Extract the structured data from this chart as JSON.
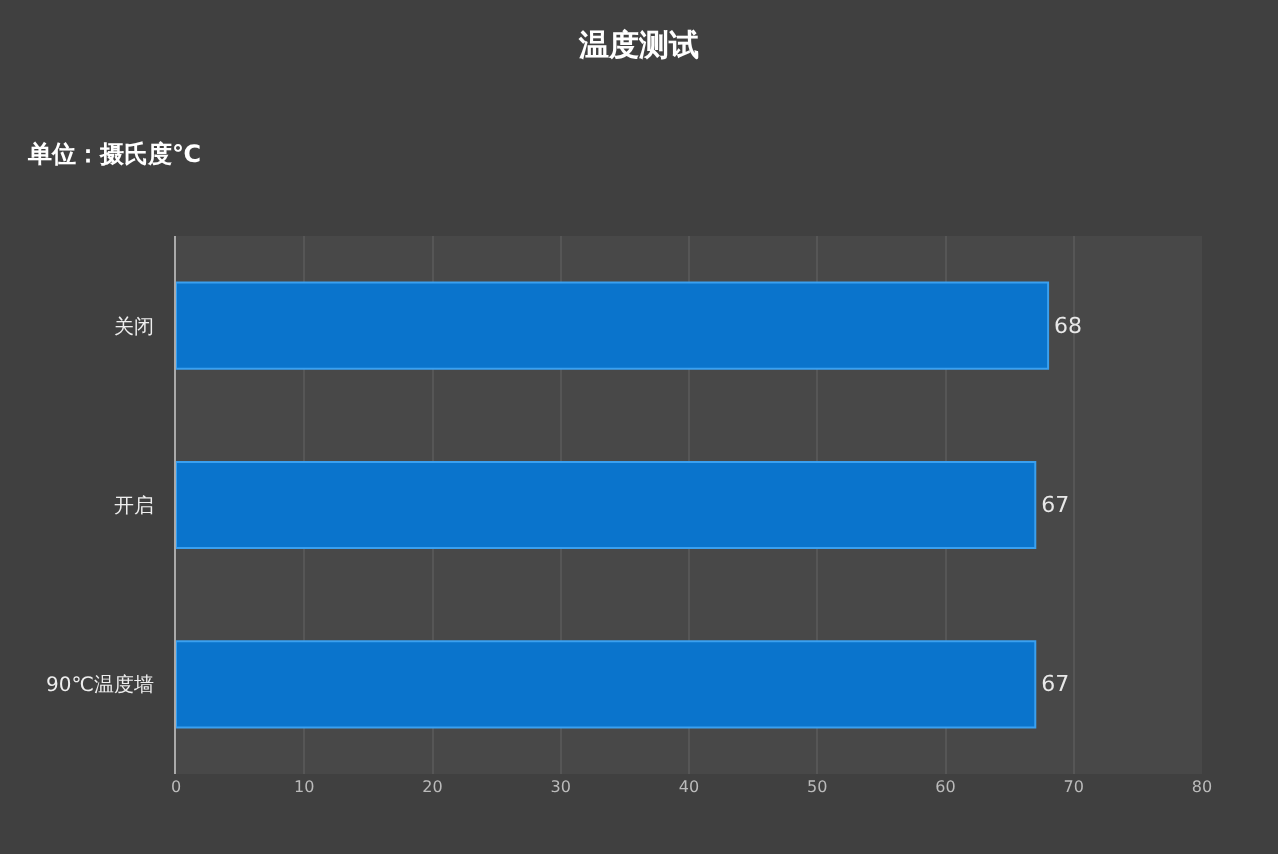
{
  "chart_data": {
    "type": "bar",
    "orientation": "horizontal",
    "title": "温度测试",
    "subtitle": "单位：摄氏度℃",
    "categories": [
      "关闭",
      "开启",
      "90℃温度墙"
    ],
    "series": [
      {
        "color": "#0a74cc",
        "values": [
          68,
          67,
          67
        ]
      }
    ],
    "xlim": [
      0,
      80
    ],
    "xticks": [
      0,
      10,
      20,
      30,
      40,
      50,
      60,
      70,
      80
    ],
    "grid": "x",
    "data_labels": true
  }
}
